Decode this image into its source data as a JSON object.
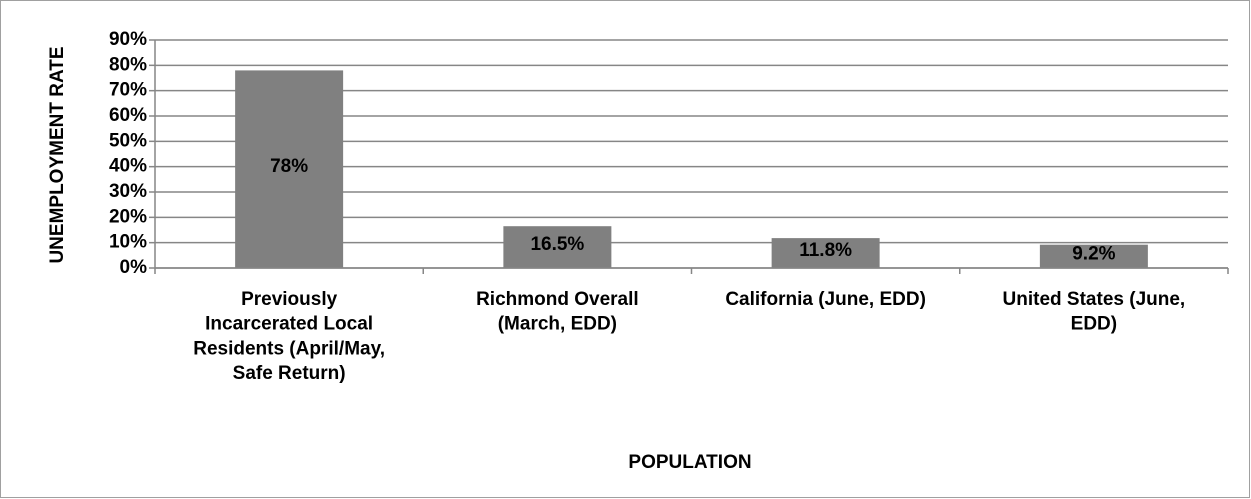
{
  "chart_data": {
    "type": "bar",
    "xlabel": "POPULATION",
    "ylabel": "UNEMPLOYMENT RATE",
    "categories": [
      "Previously Incarcerated Local Residents (April/May, Safe Return)",
      "Richmond Overall (March, EDD)",
      "California (June, EDD)",
      "United States (June, EDD)"
    ],
    "values": [
      78,
      16.5,
      11.8,
      9.2
    ],
    "value_labels": [
      "78%",
      "16.5%",
      "11.8%",
      "9.2%"
    ],
    "color": "#808080",
    "ylim": [
      0,
      90
    ],
    "yticks": [
      {
        "value": 0,
        "label": "0%"
      },
      {
        "value": 10,
        "label": "10%"
      },
      {
        "value": 20,
        "label": "20%"
      },
      {
        "value": 30,
        "label": "30%"
      },
      {
        "value": 40,
        "label": "40%"
      },
      {
        "value": 50,
        "label": "50%"
      },
      {
        "value": 60,
        "label": "60%"
      },
      {
        "value": 70,
        "label": "70%"
      },
      {
        "value": 80,
        "label": "80%"
      },
      {
        "value": 90,
        "label": "90%"
      }
    ],
    "grid": true
  }
}
